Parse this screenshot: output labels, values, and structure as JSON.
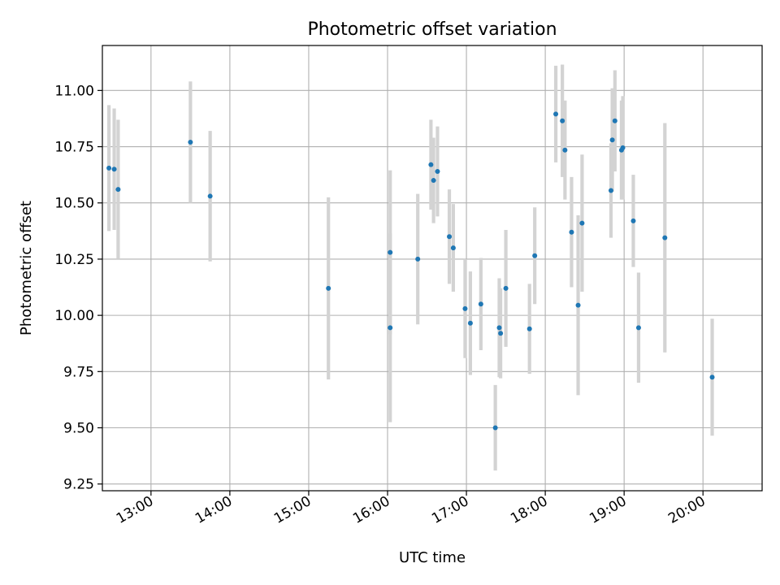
{
  "chart_data": {
    "type": "scatter",
    "title": "Photometric offset variation",
    "xlabel": "UTC time",
    "ylabel": "Photometric offset",
    "x_unit": "UTC time of day (HH:MM)",
    "xlim": [
      "12:23",
      "20:45"
    ],
    "ylim": [
      9.22,
      11.2
    ],
    "x_ticks": [
      "13:00",
      "14:00",
      "15:00",
      "16:00",
      "17:00",
      "18:00",
      "19:00",
      "20:00"
    ],
    "y_ticks": [
      "9.25",
      "9.50",
      "9.75",
      "10.00",
      "10.25",
      "10.50",
      "10.75",
      "11.00"
    ],
    "grid": true,
    "errorbars": true,
    "colors": {
      "marker": "#1f77b4",
      "errorbar": "#d3d3d3",
      "grid": "#b0b0b0"
    },
    "points": [
      {
        "x": "12:28",
        "y": 10.655,
        "err": 0.28
      },
      {
        "x": "12:32",
        "y": 10.65,
        "err": 0.27
      },
      {
        "x": "12:35",
        "y": 10.56,
        "err": 0.31
      },
      {
        "x": "13:30",
        "y": 10.77,
        "err": 0.27
      },
      {
        "x": "13:45",
        "y": 10.53,
        "err": 0.29
      },
      {
        "x": "15:15",
        "y": 10.12,
        "err": 0.405
      },
      {
        "x": "16:02",
        "y": 10.28,
        "err": 0.365
      },
      {
        "x": "16:02",
        "y": 9.945,
        "err": 0.42
      },
      {
        "x": "16:23",
        "y": 10.25,
        "err": 0.29
      },
      {
        "x": "16:33",
        "y": 10.67,
        "err": 0.2
      },
      {
        "x": "16:35",
        "y": 10.6,
        "err": 0.19
      },
      {
        "x": "16:38",
        "y": 10.64,
        "err": 0.2
      },
      {
        "x": "16:47",
        "y": 10.35,
        "err": 0.21
      },
      {
        "x": "16:50",
        "y": 10.3,
        "err": 0.195
      },
      {
        "x": "16:59",
        "y": 10.03,
        "err": 0.22
      },
      {
        "x": "17:03",
        "y": 9.965,
        "err": 0.23
      },
      {
        "x": "17:11",
        "y": 10.05,
        "err": 0.205
      },
      {
        "x": "17:22",
        "y": 9.5,
        "err": 0.19
      },
      {
        "x": "17:25",
        "y": 9.945,
        "err": 0.22
      },
      {
        "x": "17:26",
        "y": 9.92,
        "err": 0.2
      },
      {
        "x": "17:30",
        "y": 10.12,
        "err": 0.26
      },
      {
        "x": "17:48",
        "y": 9.94,
        "err": 0.2
      },
      {
        "x": "17:52",
        "y": 10.265,
        "err": 0.215
      },
      {
        "x": "18:08",
        "y": 10.895,
        "err": 0.215
      },
      {
        "x": "18:13",
        "y": 10.865,
        "err": 0.25
      },
      {
        "x": "18:15",
        "y": 10.735,
        "err": 0.22
      },
      {
        "x": "18:20",
        "y": 10.37,
        "err": 0.245
      },
      {
        "x": "18:25",
        "y": 10.045,
        "err": 0.4
      },
      {
        "x": "18:28",
        "y": 10.41,
        "err": 0.305
      },
      {
        "x": "18:50",
        "y": 10.555,
        "err": 0.21
      },
      {
        "x": "18:51",
        "y": 10.78,
        "err": 0.23
      },
      {
        "x": "18:53",
        "y": 10.865,
        "err": 0.225
      },
      {
        "x": "18:58",
        "y": 10.735,
        "err": 0.22
      },
      {
        "x": "18:59",
        "y": 10.745,
        "err": 0.23
      },
      {
        "x": "19:07",
        "y": 10.42,
        "err": 0.205
      },
      {
        "x": "19:11",
        "y": 9.945,
        "err": 0.245
      },
      {
        "x": "19:31",
        "y": 10.345,
        "err": 0.51
      },
      {
        "x": "20:07",
        "y": 9.725,
        "err": 0.26
      }
    ]
  }
}
